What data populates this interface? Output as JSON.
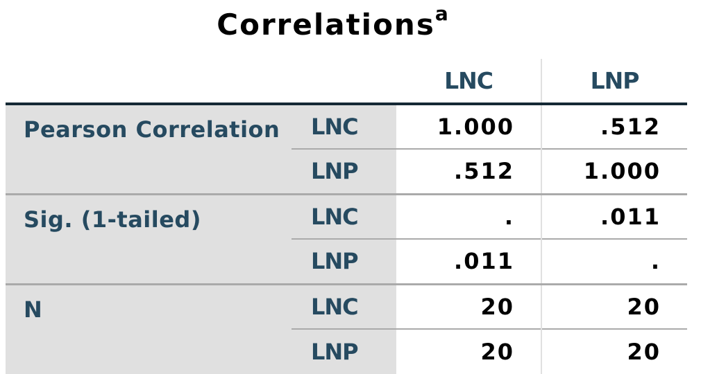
{
  "title": "Correlations",
  "title_footnote": "a",
  "columns": [
    "LNC",
    "LNP"
  ],
  "groups": [
    {
      "label": "Pearson Correlation",
      "rows": [
        {
          "var": "LNC",
          "values": [
            "1.000",
            ".512"
          ]
        },
        {
          "var": "LNP",
          "values": [
            ".512",
            "1.000"
          ]
        }
      ]
    },
    {
      "label": "Sig. (1-tailed)",
      "rows": [
        {
          "var": "LNC",
          "values": [
            ".",
            ".011"
          ]
        },
        {
          "var": "LNP",
          "values": [
            ".011",
            "."
          ]
        }
      ]
    },
    {
      "label": "N",
      "rows": [
        {
          "var": "LNC",
          "values": [
            "20",
            "20"
          ]
        },
        {
          "var": "LNP",
          "values": [
            "20",
            "20"
          ]
        }
      ]
    }
  ],
  "colors": {
    "label_text": "#264a60",
    "label_bg": "#e0e0e0",
    "header_rule": "#152935"
  }
}
